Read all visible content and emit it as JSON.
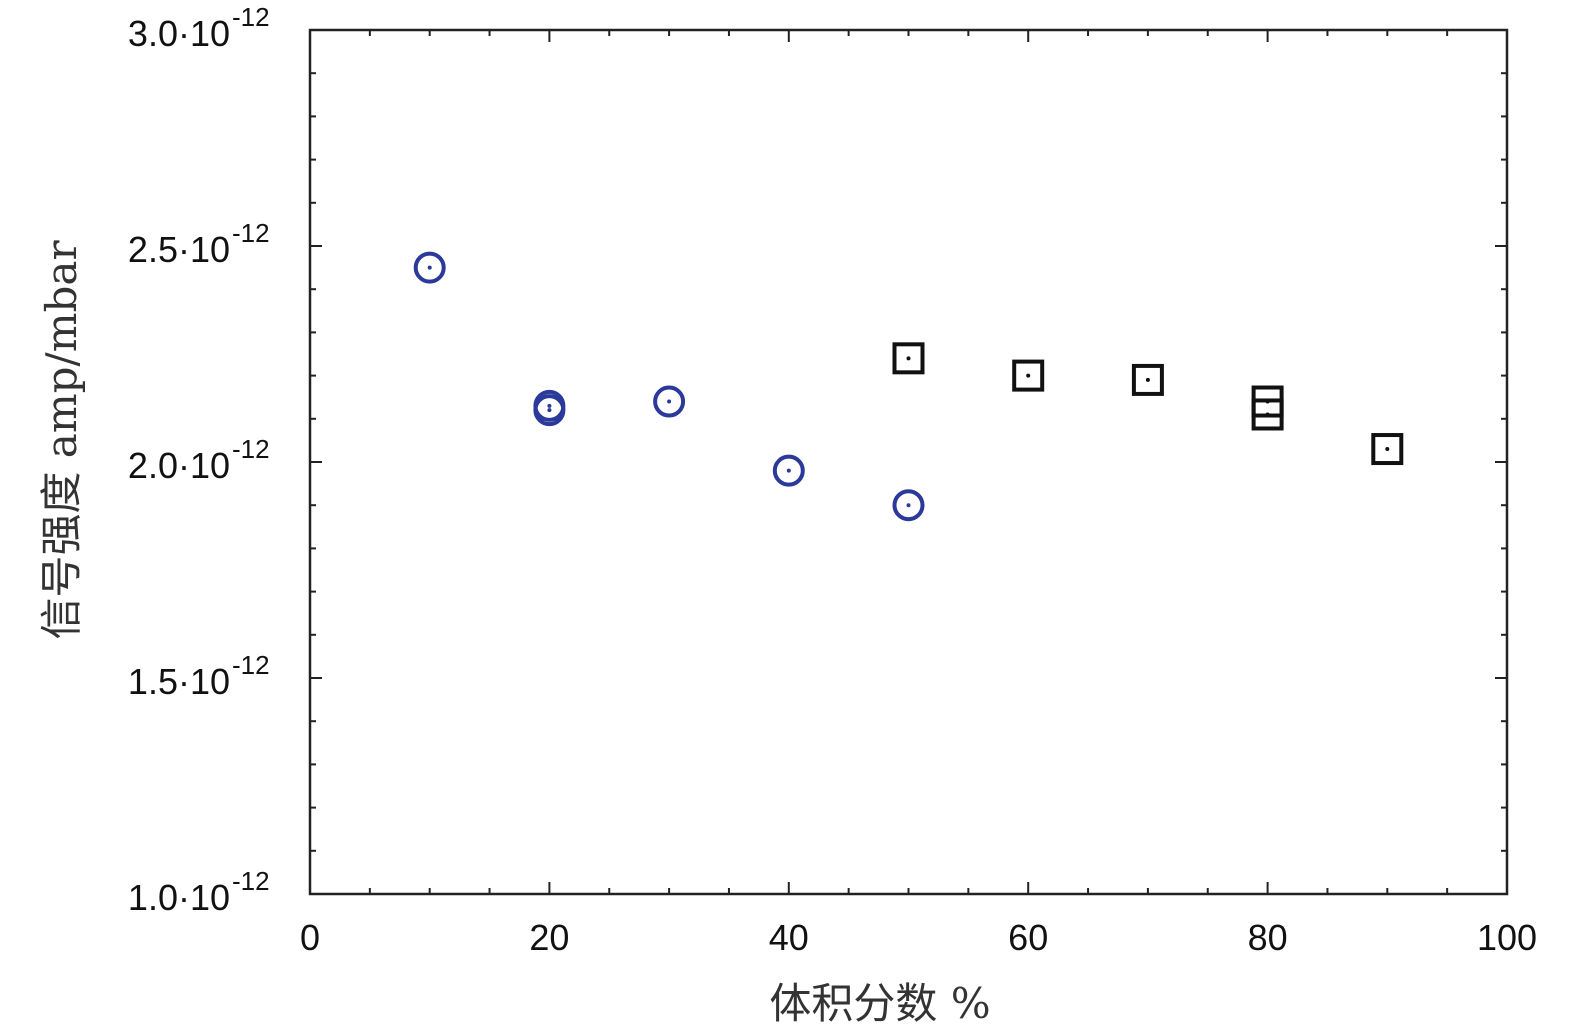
{
  "chart_data": {
    "type": "scatter",
    "title": "",
    "xlabel": "体积分数 %",
    "ylabel": "信号强度 amp/mbar",
    "xlim": [
      0,
      100
    ],
    "ylim": [
      1e-12,
      3e-12
    ],
    "x_ticks": [
      0,
      20,
      40,
      60,
      80,
      100
    ],
    "x_tick_labels": [
      "0",
      "20",
      "40",
      "60",
      "80",
      "100"
    ],
    "y_ticks": [
      {
        "value": 1e-12,
        "mantissa": "1.0·10",
        "exponent": "-12"
      },
      {
        "value": 1.5e-12,
        "mantissa": "1.5·10",
        "exponent": "-12"
      },
      {
        "value": 2e-12,
        "mantissa": "2.0·10",
        "exponent": "-12"
      },
      {
        "value": 2.5e-12,
        "mantissa": "2.5·10",
        "exponent": "-12"
      },
      {
        "value": 3e-12,
        "mantissa": "3.0·10",
        "exponent": "-12"
      }
    ],
    "grid": false,
    "legend": "none",
    "series": [
      {
        "marker": "circle",
        "color": "#2b3a9a",
        "points": [
          {
            "x": 10,
            "y": 2.45e-12
          },
          {
            "x": 20,
            "y": 2.12e-12
          },
          {
            "x": 20,
            "y": 2.13e-12
          },
          {
            "x": 30,
            "y": 2.14e-12
          },
          {
            "x": 40,
            "y": 1.98e-12
          },
          {
            "x": 50,
            "y": 1.9e-12
          }
        ]
      },
      {
        "marker": "square",
        "color": "#111111",
        "points": [
          {
            "x": 50,
            "y": 2.24e-12
          },
          {
            "x": 60,
            "y": 2.2e-12
          },
          {
            "x": 70,
            "y": 2.19e-12
          },
          {
            "x": 80,
            "y": 2.14e-12
          },
          {
            "x": 80,
            "y": 2.11e-12
          },
          {
            "x": 90,
            "y": 2.03e-12
          }
        ]
      }
    ]
  }
}
